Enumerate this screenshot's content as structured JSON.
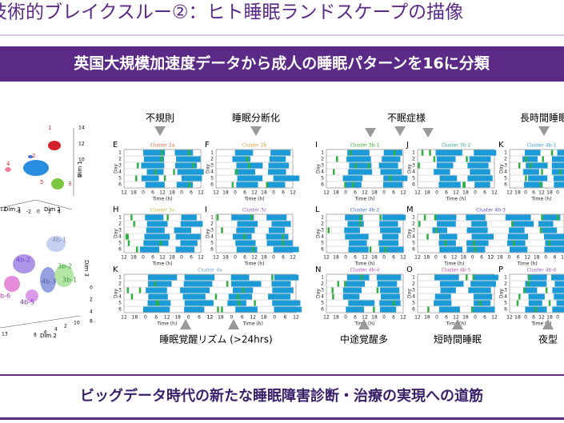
{
  "header": {
    "title": "技術的ブレイクスルー②：ヒト睡眠ランドスケープの描像",
    "banner": "英国大規模加速度データから成人の睡眠パターンを16に分類"
  },
  "embedding": {
    "top_labels": [
      "1",
      "2",
      "3",
      "4",
      "5"
    ],
    "top_axes": [
      "Dim 1",
      "Dim 2",
      "Dim 3"
    ],
    "top_ticks": [
      "14",
      "12",
      "10",
      "8",
      "-4",
      "-2",
      "0",
      "2",
      "4",
      "12"
    ],
    "bottom_labels": [
      "4b-1",
      "4b-2",
      "3b-2",
      "3b-1",
      "4b-5",
      "4b-3",
      "b-6"
    ],
    "bottom_axes": [
      "Dim 2",
      "Dim 3"
    ],
    "bottom_ticks": [
      "2",
      "4",
      "6",
      "8",
      "10",
      "13",
      "0",
      "2",
      "4",
      "8"
    ]
  },
  "axis": {
    "day": "Day",
    "time": "Time (h)",
    "time_ticks": [
      "12",
      "18",
      "0",
      "6",
      "12",
      "18",
      "0",
      "6",
      "12"
    ],
    "day_ticks": [
      "1",
      "2",
      "3",
      "4",
      "5",
      "6"
    ]
  },
  "panels": [
    {
      "letter": "E",
      "cluster": "Cluster 2a"
    },
    {
      "letter": "F",
      "cluster": "Cluster 2b"
    },
    {
      "letter": "H",
      "cluster": "Cluster 3a"
    },
    {
      "letter": "I",
      "cluster": "Cluster 3c"
    },
    {
      "letter": "K",
      "cluster": "Cluster 4a"
    },
    {
      "letter": "I",
      "cluster": "Cluster 3b-1"
    },
    {
      "letter": "J",
      "cluster": "Cluster 3b-2"
    },
    {
      "letter": "K",
      "cluster": "Cluster 4b-1"
    },
    {
      "letter": "L",
      "cluster": "Cluster 4b-2"
    },
    {
      "letter": "M",
      "cluster": "Cluster 4b-3"
    },
    {
      "letter": "N",
      "cluster": "Cluster 4b-4"
    },
    {
      "letter": "O",
      "cluster": "Cluster 4b-5"
    },
    {
      "letter": "P",
      "cluster": "Cluster 4b-6"
    }
  ],
  "annotations": {
    "top": [
      "不規則",
      "睡眠分断化",
      "不眠症様",
      "長時間睡眠"
    ],
    "bottom": [
      "睡眠覚醒リズム (>24hrs)",
      "中途覚醒多",
      "短時間睡眠",
      "夜型"
    ]
  },
  "footer": "ビッグデータ時代の新たな睡眠障害診断・治療の実現への道筋"
}
